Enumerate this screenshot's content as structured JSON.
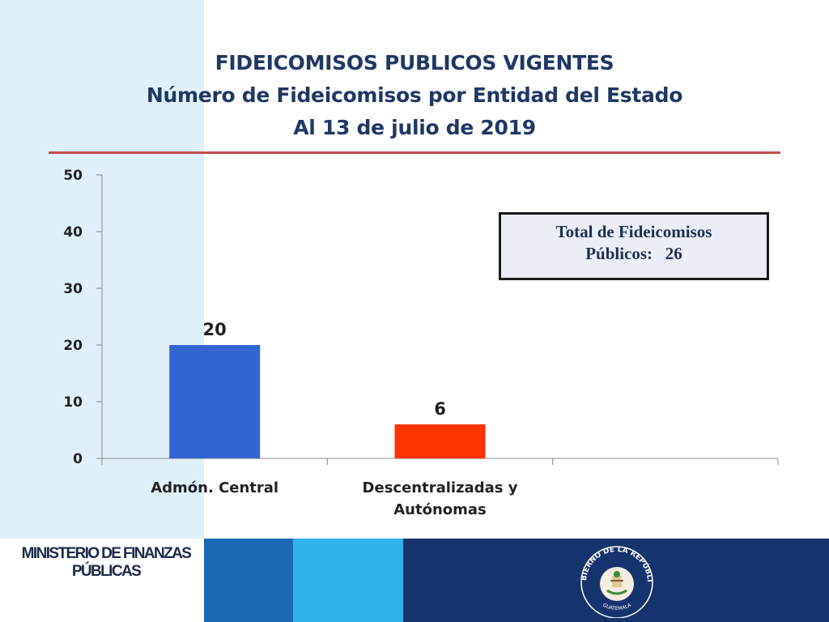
{
  "header": {
    "title_line1": "FIDEICOMISOS PUBLICOS VIGENTES",
    "title_line2": "Número de Fideicomisos por Entidad del Estado",
    "title_line3": "Al 13 de julio de 2019"
  },
  "total_box": {
    "line1": "Total de Fideicomisos",
    "line2": "Públicos:   26"
  },
  "chart_data": {
    "type": "bar",
    "categories": [
      "Admón. Central",
      "Descentralizadas y Autónomas",
      ""
    ],
    "category_lines": [
      [
        "Admón. Central"
      ],
      [
        "Descentralizadas y",
        "Autónomas"
      ],
      []
    ],
    "values": [
      20,
      6,
      null
    ],
    "data_labels": [
      "20",
      "6",
      ""
    ],
    "colors": [
      "#3264d2",
      "#ff3300"
    ],
    "ylim": [
      0,
      50
    ],
    "yticks": [
      0,
      10,
      20,
      30,
      40,
      50
    ],
    "xlabel": "",
    "ylabel": "",
    "grid": false
  },
  "footer": {
    "ministry_line1": "MINISTERIO DE FINANZAS",
    "ministry_line2": "PÚBLICAS",
    "seal_top_text": "GOBIERNO DE LA REPÚBLICA",
    "seal_bottom_text": "GUATEMALA"
  }
}
